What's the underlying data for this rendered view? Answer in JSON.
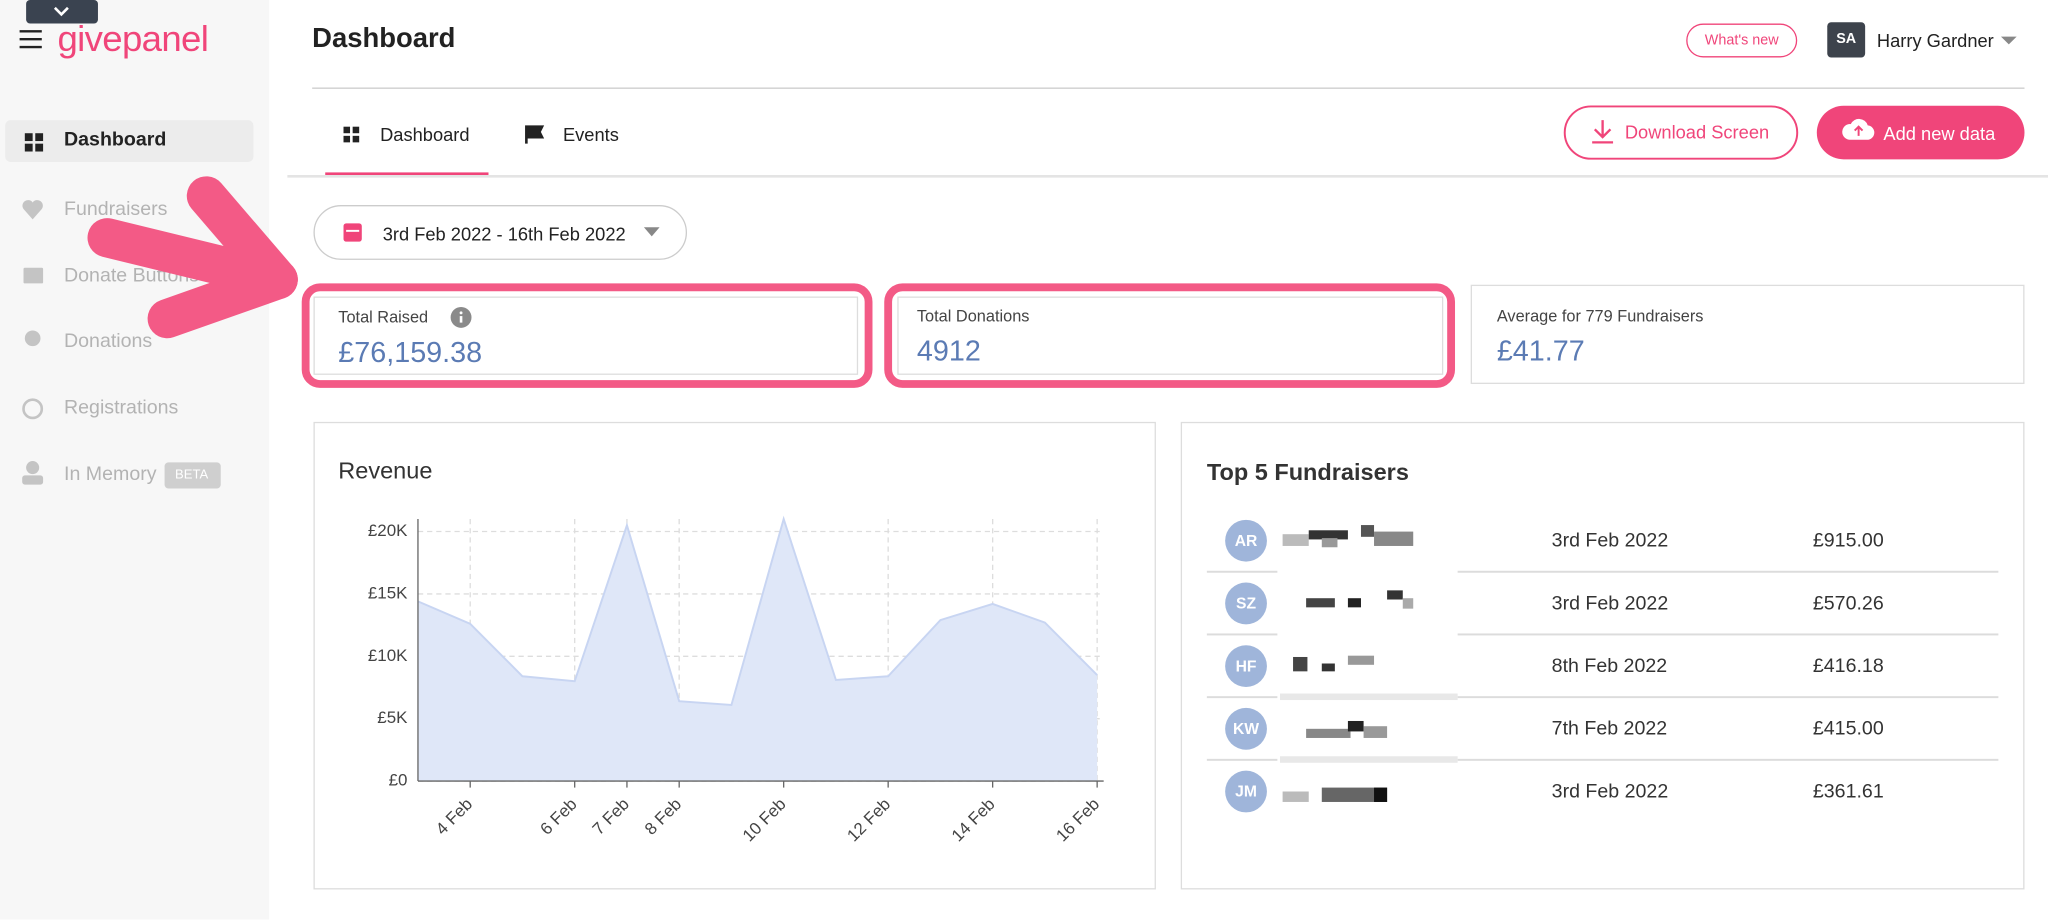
{
  "sidebar": {
    "logo": "givepanel",
    "nav": [
      "Dashboard",
      "Fundraisers",
      "Donate Buttons",
      "Donations",
      "Registrations",
      "In Memory"
    ],
    "badge": "BETA"
  },
  "header": {
    "title": "Dashboard",
    "whats_new": "What's new",
    "avatar": "SA",
    "user": "Harry Gardner"
  },
  "tabs": [
    "Dashboard",
    "Events"
  ],
  "buttons": [
    "Download Screen",
    "Add new data"
  ],
  "date_range": "3rd Feb 2022 - 16th Feb 2022",
  "stats": [
    {
      "label": "Total Raised",
      "value": "£76,159.38"
    },
    {
      "label": "Total Donations",
      "value": "4912"
    },
    {
      "label": "Average for 779 Fundraisers",
      "value": "£41.77"
    }
  ],
  "chart_data": {
    "type": "area",
    "title": "Revenue",
    "categories": [
      null,
      "4 Feb",
      null,
      "6 Feb",
      "7 Feb",
      "8 Feb",
      null,
      "10 Feb",
      null,
      "12 Feb",
      null,
      "14 Feb",
      null,
      "16 Feb"
    ],
    "values": [
      14400,
      12600,
      8400,
      8000,
      20500,
      6400,
      6100,
      21000,
      8100,
      8400,
      12900,
      14200,
      12700,
      8500
    ],
    "color": "#dfe7f8",
    "line_color": "#c8d5f2",
    "ylim": [
      0,
      21000
    ],
    "yticks": [
      {
        "value": 0,
        "label": "£0"
      },
      {
        "value": 5000,
        "label": "£5K"
      },
      {
        "value": 10000,
        "label": "£10K"
      },
      {
        "value": 15000,
        "label": "£15K"
      },
      {
        "value": 20000,
        "label": "£20K"
      }
    ],
    "grid": true
  },
  "top_fundraisers": {
    "title": "Top 5 Fundraisers",
    "rows": [
      [
        "AR",
        "3rd Feb 2022",
        "£915.00"
      ],
      [
        "SZ",
        "3rd Feb 2022",
        "£570.26"
      ],
      [
        "HF",
        "8th Feb 2022",
        "£416.18"
      ],
      [
        "KW",
        "7th Feb 2022",
        "£415.00"
      ],
      [
        "JM",
        "3rd Feb 2022",
        "£361.61"
      ]
    ]
  }
}
